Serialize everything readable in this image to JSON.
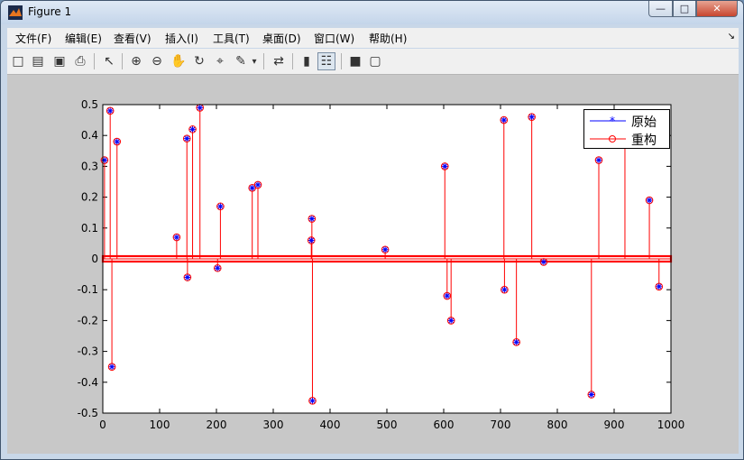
{
  "window": {
    "title": "Figure 1",
    "controls": {
      "minimize": "—",
      "maximize": "□",
      "close": "✕"
    }
  },
  "menu": [
    {
      "label": "文件(F)"
    },
    {
      "label": "编辑(E)"
    },
    {
      "label": "查看(V)"
    },
    {
      "label": "插入(I)"
    },
    {
      "label": "工具(T)"
    },
    {
      "label": "桌面(D)"
    },
    {
      "label": "窗口(W)"
    },
    {
      "label": "帮助(H)"
    }
  ],
  "toolbar": [
    {
      "icon": "new-figure-icon",
      "glyph": "□"
    },
    {
      "icon": "open-folder-icon",
      "glyph": "▤"
    },
    {
      "icon": "save-icon",
      "glyph": "▣"
    },
    {
      "icon": "print-icon",
      "glyph": "⎙"
    },
    {
      "icon": "edit-plot-arrow-icon",
      "glyph": "↖"
    },
    {
      "icon": "zoom-in-icon",
      "glyph": "⊕"
    },
    {
      "icon": "zoom-out-icon",
      "glyph": "⊖"
    },
    {
      "icon": "pan-hand-icon",
      "glyph": "✋"
    },
    {
      "icon": "rotate-3d-icon",
      "glyph": "↻"
    },
    {
      "icon": "data-cursor-icon",
      "glyph": "⌖"
    },
    {
      "icon": "brush-icon",
      "glyph": "✎"
    },
    {
      "icon": "brush-dropdown-icon",
      "glyph": "▾"
    },
    {
      "icon": "link-plot-icon",
      "glyph": "⇄"
    },
    {
      "icon": "colorbar-icon",
      "glyph": "▮"
    },
    {
      "icon": "legend-icon",
      "glyph": "☷"
    },
    {
      "icon": "hide-plot-tools-icon",
      "glyph": "■"
    },
    {
      "icon": "show-plot-tools-icon",
      "glyph": "▢"
    }
  ],
  "colors": {
    "original": "#0000ff",
    "reconstructed": "#ff0000",
    "stem": "#ff0000",
    "baseline": "#ff0000"
  },
  "chart_data": {
    "type": "scatter",
    "xlim": [
      0,
      1000
    ],
    "ylim": [
      -0.5,
      0.5
    ],
    "x_ticks": [
      0,
      100,
      200,
      300,
      400,
      500,
      600,
      700,
      800,
      900,
      1000
    ],
    "y_ticks": [
      -0.5,
      -0.4,
      -0.3,
      -0.2,
      -0.1,
      0,
      0.1,
      0.2,
      0.3,
      0.4,
      0.5
    ],
    "x_tick_labels": [
      "0",
      "100",
      "200",
      "300",
      "400",
      "500",
      "600",
      "700",
      "800",
      "900",
      "1000"
    ],
    "y_tick_labels": [
      "-0.5",
      "-0.4",
      "-0.3",
      "-0.2",
      "-0.1",
      "0",
      "0.1",
      "0.2",
      "0.3",
      "0.4",
      "0.5"
    ],
    "n_points": 1000,
    "legend": {
      "position": "top-right",
      "entries": [
        {
          "label": "原始",
          "marker": "*",
          "color": "#0000ff"
        },
        {
          "label": "重构",
          "marker": "o",
          "color": "#ff0000"
        }
      ]
    },
    "series": [
      {
        "name": "原始",
        "marker": "*",
        "points": [
          [
            3,
            0.32
          ],
          [
            13,
            0.48
          ],
          [
            16,
            -0.35
          ],
          [
            25,
            0.38
          ],
          [
            130,
            0.07
          ],
          [
            148,
            0.39
          ],
          [
            149,
            -0.06
          ],
          [
            158,
            0.42
          ],
          [
            171,
            0.49
          ],
          [
            202,
            -0.03
          ],
          [
            207,
            0.17
          ],
          [
            263,
            0.23
          ],
          [
            273,
            0.24
          ],
          [
            367,
            0.06
          ],
          [
            368,
            0.13
          ],
          [
            369,
            -0.46
          ],
          [
            497,
            0.03
          ],
          [
            602,
            0.3
          ],
          [
            606,
            -0.12
          ],
          [
            613,
            -0.2
          ],
          [
            706,
            0.45
          ],
          [
            707,
            -0.1
          ],
          [
            728,
            -0.27
          ],
          [
            755,
            0.46
          ],
          [
            776,
            -0.01
          ],
          [
            860,
            -0.44
          ],
          [
            873,
            0.32
          ],
          [
            919,
            0.45
          ],
          [
            962,
            0.19
          ],
          [
            979,
            -0.09
          ]
        ]
      },
      {
        "name": "重构",
        "marker": "o",
        "points": [
          [
            3,
            0.32
          ],
          [
            13,
            0.48
          ],
          [
            16,
            -0.35
          ],
          [
            25,
            0.38
          ],
          [
            130,
            0.07
          ],
          [
            148,
            0.39
          ],
          [
            149,
            -0.06
          ],
          [
            158,
            0.42
          ],
          [
            171,
            0.49
          ],
          [
            202,
            -0.03
          ],
          [
            207,
            0.17
          ],
          [
            263,
            0.23
          ],
          [
            273,
            0.24
          ],
          [
            367,
            0.06
          ],
          [
            368,
            0.13
          ],
          [
            369,
            -0.46
          ],
          [
            497,
            0.03
          ],
          [
            602,
            0.3
          ],
          [
            606,
            -0.12
          ],
          [
            613,
            -0.2
          ],
          [
            706,
            0.45
          ],
          [
            707,
            -0.1
          ],
          [
            728,
            -0.27
          ],
          [
            755,
            0.46
          ],
          [
            776,
            -0.01
          ],
          [
            860,
            -0.44
          ],
          [
            873,
            0.32
          ],
          [
            919,
            0.45
          ],
          [
            962,
            0.19
          ],
          [
            979,
            -0.09
          ]
        ]
      }
    ]
  }
}
